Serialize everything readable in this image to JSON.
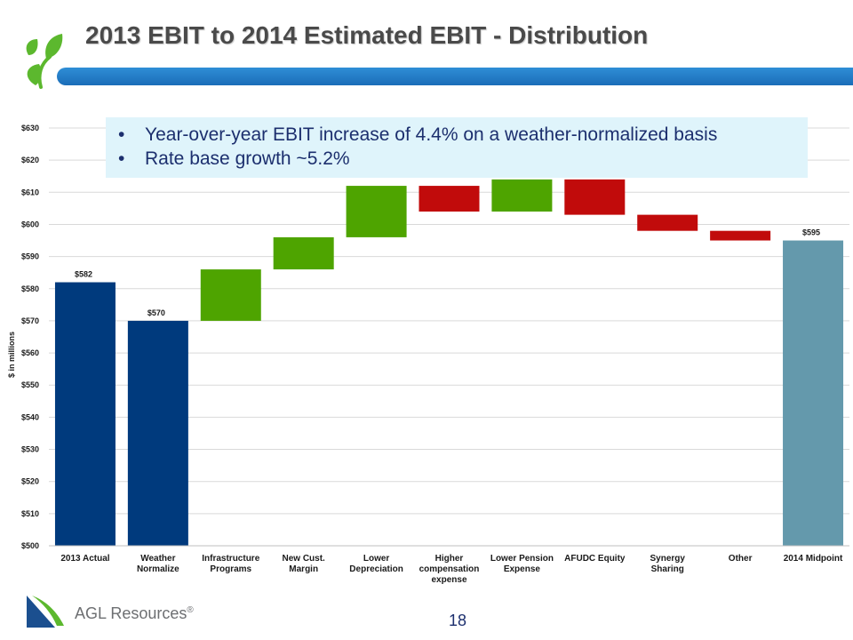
{
  "title": "2013 EBIT to 2014 Estimated EBIT - Distribution",
  "callout": {
    "bullets": [
      "Year-over-year EBIT increase of 4.4% on a weather-normalized basis",
      "Rate base growth ~5.2%"
    ],
    "bullet_symbol": "•"
  },
  "footer": {
    "company": "AGL Resources",
    "trademark": "®",
    "page_number": "18"
  },
  "colors": {
    "total_dark": "#003a7d",
    "total_light": "#6499ac",
    "increase": "#4ea400",
    "decrease": "#c10b0b",
    "title_bar": "#1f7ac8",
    "leaf_green": "#5cb82e"
  },
  "chart_data": {
    "type": "waterfall",
    "ylabel": "$ in millions",
    "ylim": [
      500,
      630
    ],
    "yticks": [
      500,
      510,
      520,
      530,
      540,
      550,
      560,
      570,
      580,
      590,
      600,
      610,
      620,
      630
    ],
    "ytick_labels": [
      "$500",
      "$510",
      "$520",
      "$530",
      "$540",
      "$550",
      "$560",
      "$570",
      "$580",
      "$590",
      "$600",
      "$610",
      "$620",
      "$630"
    ],
    "grid": true,
    "categories": [
      [
        "2013 Actual"
      ],
      [
        "Weather",
        "Normalize"
      ],
      [
        "Infrastructure",
        "Programs"
      ],
      [
        "New Cust.",
        "Margin"
      ],
      [
        "Lower",
        "Depreciation"
      ],
      [
        "Higher",
        "compensation",
        "expense"
      ],
      [
        "Lower Pension",
        "Expense"
      ],
      [
        "AFUDC Equity"
      ],
      [
        "Synergy",
        "Sharing"
      ],
      [
        "Other"
      ],
      [
        "2014 Midpoint"
      ]
    ],
    "bars": [
      {
        "kind": "total_dark",
        "start": 500,
        "end": 582,
        "label": "$582"
      },
      {
        "kind": "total_dark",
        "start": 500,
        "end": 570,
        "label": "$570"
      },
      {
        "kind": "increase",
        "start": 570,
        "end": 586,
        "label": ""
      },
      {
        "kind": "increase",
        "start": 586,
        "end": 596,
        "label": ""
      },
      {
        "kind": "increase",
        "start": 596,
        "end": 612,
        "label": ""
      },
      {
        "kind": "decrease",
        "start": 612,
        "end": 604,
        "label": ""
      },
      {
        "kind": "increase",
        "start": 604,
        "end": 614,
        "label": ""
      },
      {
        "kind": "decrease",
        "start": 614,
        "end": 603,
        "label": ""
      },
      {
        "kind": "decrease",
        "start": 603,
        "end": 598,
        "label": ""
      },
      {
        "kind": "decrease",
        "start": 598,
        "end": 595,
        "label": ""
      },
      {
        "kind": "total_light",
        "start": 500,
        "end": 595,
        "label": "$595"
      }
    ]
  }
}
